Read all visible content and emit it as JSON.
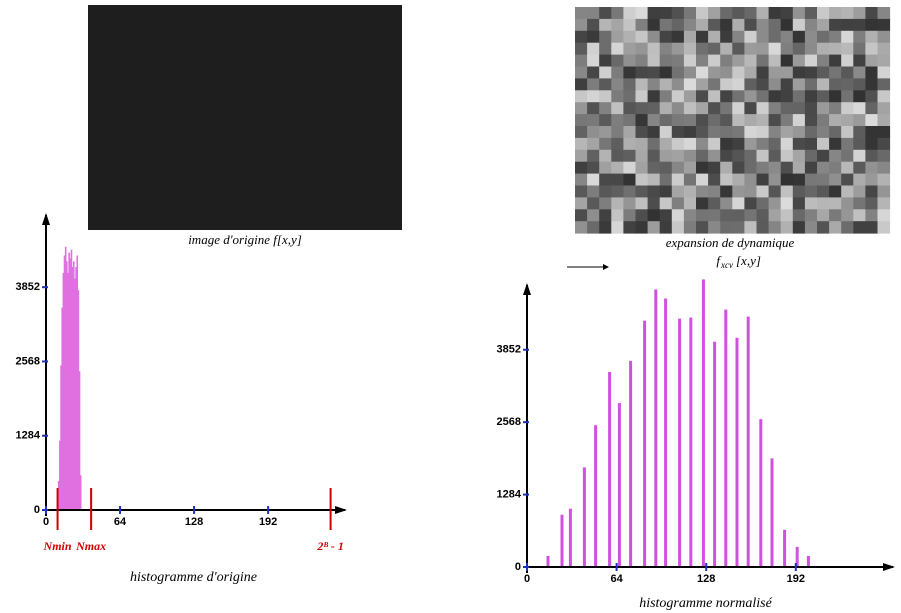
{
  "captions": {
    "original": "image d'origine f[x,y]",
    "expanded_line1": "expansion de dynamique",
    "expanded_f": "f",
    "expanded_sub": "xcv",
    "expanded_args": "[x,y]"
  },
  "chart_data": [
    {
      "type": "bar",
      "x_label": "histogramme d'origine",
      "color": "#e070e0",
      "x": [
        10,
        11,
        12,
        13,
        14,
        15,
        16,
        17,
        18,
        19,
        20,
        21,
        22,
        23,
        24,
        25,
        26,
        27,
        28,
        29,
        30
      ],
      "values": [
        200,
        500,
        1200,
        2500,
        3500,
        4100,
        4400,
        4550,
        4300,
        4100,
        4450,
        4350,
        4500,
        4200,
        4300,
        4000,
        4200,
        4400,
        3800,
        2400,
        600
      ],
      "xlim": [
        0,
        255
      ],
      "ylim": [
        0,
        5100
      ],
      "xticks": [
        0,
        64,
        128,
        192
      ],
      "yticks": [
        0,
        1284,
        2568,
        3852
      ],
      "markers": [
        {
          "value": 10,
          "label": "Nmin"
        },
        {
          "value": 39,
          "label": "Nmax"
        },
        {
          "value": 246,
          "label": "2ᴮ - 1"
        }
      ]
    },
    {
      "type": "bar",
      "x_label": "histogramme normalisé",
      "color": "#d050e0",
      "x": [
        15,
        25,
        31,
        41,
        49,
        59,
        66,
        74,
        84,
        92,
        99,
        109,
        117,
        126,
        134,
        142,
        150,
        158,
        167,
        175,
        184,
        193,
        201
      ],
      "values": [
        196,
        927,
        1034,
        1765,
        2514,
        3459,
        2906,
        3655,
        4368,
        4921,
        4761,
        4404,
        4422,
        5099,
        3994,
        4564,
        4065,
        4440,
        2621,
        1926,
        660,
        357,
        196
      ],
      "xlim": [
        0,
        255
      ],
      "ylim": [
        0,
        5000
      ],
      "xticks": [
        0,
        64,
        128,
        192
      ],
      "yticks": [
        0,
        1284,
        2568,
        3852
      ]
    }
  ]
}
